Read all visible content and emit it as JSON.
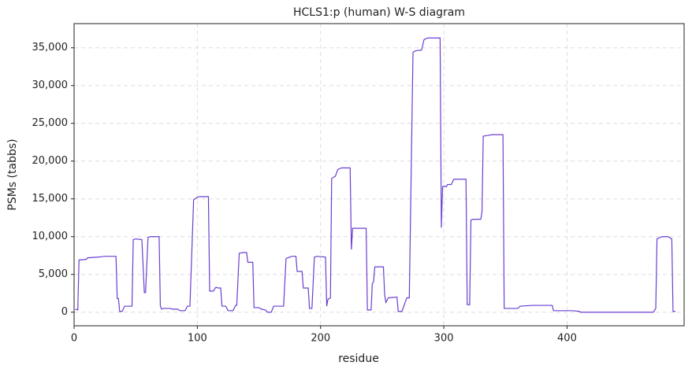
{
  "chart_data": {
    "type": "line",
    "title": "HCLS1:p (human) W-S diagram",
    "x_label": "residue",
    "y_label": "PSMs (tabbs)",
    "color": "#6a3fd1",
    "grid": true,
    "xlim": [
      0,
      495
    ],
    "ylim": [
      -1800,
      38200
    ],
    "xticks": [
      0,
      100,
      200,
      300,
      400
    ],
    "yticks": [
      0,
      {
        "value": 5000,
        "label": "5,000"
      },
      {
        "value": 10000,
        "label": "10,000"
      },
      {
        "value": 15000,
        "label": "15,000"
      },
      {
        "value": 20000,
        "label": "20,000"
      },
      {
        "value": 25000,
        "label": "25,000"
      },
      {
        "value": 30000,
        "label": "30,000"
      },
      {
        "value": 35000,
        "label": "35,000"
      }
    ],
    "x": [
      1,
      3,
      4,
      10,
      11,
      20,
      25,
      34,
      35,
      36,
      37,
      39,
      41,
      47,
      48,
      50,
      55,
      57,
      58,
      60,
      62,
      69,
      70,
      71,
      72,
      78,
      80,
      84,
      86,
      90,
      92,
      94,
      97,
      100,
      102,
      109,
      110,
      113,
      115,
      117,
      119,
      120,
      123,
      125,
      129,
      131,
      132,
      134,
      137,
      140,
      141,
      145,
      146,
      150,
      152,
      155,
      157,
      160,
      162,
      170,
      172,
      175,
      177,
      180,
      181,
      185,
      186,
      190,
      191,
      193,
      195,
      197,
      204,
      205,
      206,
      208,
      209,
      212,
      214,
      217,
      224,
      225,
      226,
      237,
      238,
      241,
      242,
      243,
      244,
      251,
      252,
      253,
      255,
      262,
      263,
      266,
      268,
      270,
      272,
      275,
      277,
      282,
      284,
      287,
      297,
      298,
      299,
      300,
      302,
      303,
      306,
      307,
      308,
      318,
      319,
      321,
      322,
      324,
      330,
      331,
      332,
      336,
      339,
      348,
      349,
      360,
      362,
      372,
      388,
      389,
      405,
      410,
      411,
      470,
      472,
      473,
      477,
      482,
      485,
      486,
      488
    ],
    "values": [
      400,
      300,
      6900,
      7000,
      7200,
      7300,
      7400,
      7400,
      1800,
      1800,
      100,
      100,
      800,
      800,
      9600,
      9700,
      9600,
      2600,
      2600,
      9900,
      10000,
      10000,
      800,
      400,
      500,
      500,
      400,
      400,
      200,
      200,
      800,
      800,
      14900,
      15200,
      15300,
      15300,
      2800,
      2800,
      3300,
      3200,
      3200,
      800,
      800,
      200,
      200,
      900,
      900,
      7800,
      7900,
      7900,
      6600,
      6600,
      600,
      600,
      400,
      300,
      0,
      0,
      800,
      800,
      7100,
      7300,
      7400,
      7400,
      5400,
      5400,
      3200,
      3200,
      500,
      500,
      7300,
      7400,
      7300,
      800,
      1700,
      1900,
      17700,
      18000,
      18900,
      19100,
      19100,
      8300,
      11100,
      11100,
      300,
      300,
      3800,
      4000,
      6000,
      6000,
      2300,
      1300,
      1900,
      2000,
      100,
      100,
      1000,
      1900,
      1900,
      34400,
      34600,
      34700,
      36100,
      36300,
      36300,
      11200,
      16600,
      16700,
      16600,
      16900,
      16900,
      17200,
      17600,
      17600,
      1000,
      1000,
      12200,
      12300,
      12300,
      13300,
      23300,
      23400,
      23500,
      23500,
      500,
      500,
      800,
      900,
      900,
      200,
      200,
      100,
      0,
      0,
      500,
      9700,
      10000,
      10000,
      9700,
      100,
      100
    ]
  }
}
